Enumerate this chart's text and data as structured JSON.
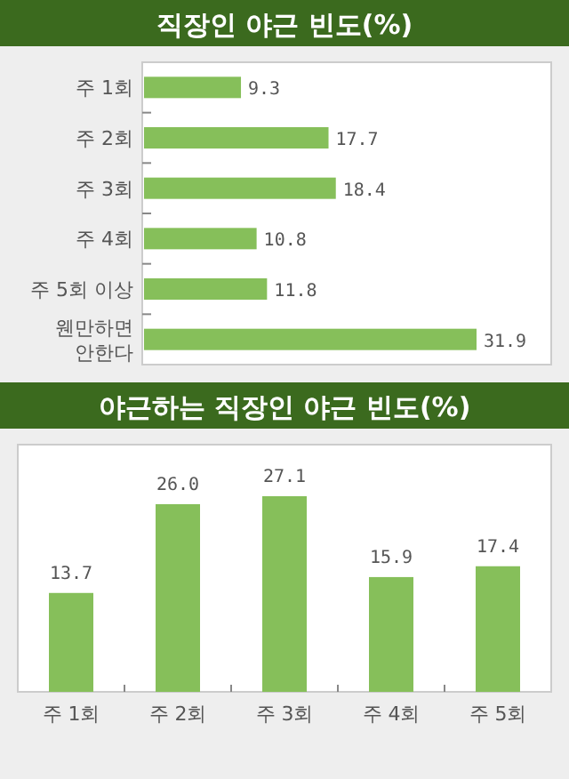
{
  "chart_data": [
    {
      "type": "bar",
      "orientation": "horizontal",
      "title": "직장인 야근 빈도(%)",
      "categories": [
        "주 1회",
        "주 2회",
        "주 3회",
        "주 4회",
        "주 5회 이상",
        "웬만하면\n안한다"
      ],
      "values": [
        9.3,
        17.7,
        18.4,
        10.8,
        11.8,
        31.9
      ],
      "color": "#86bf5a",
      "data_labels": true
    },
    {
      "type": "bar",
      "title": "야근하는 직장인 야근 빈도(%)",
      "categories": [
        "주 1회",
        "주 2회",
        "주 3회",
        "주 4회",
        "주 5회"
      ],
      "values": [
        13.7,
        26.0,
        27.1,
        15.9,
        17.4
      ],
      "value_labels": [
        "13.7",
        "26.0",
        "27.1",
        "15.9",
        "17.4"
      ],
      "color": "#86bf5a"
    }
  ]
}
